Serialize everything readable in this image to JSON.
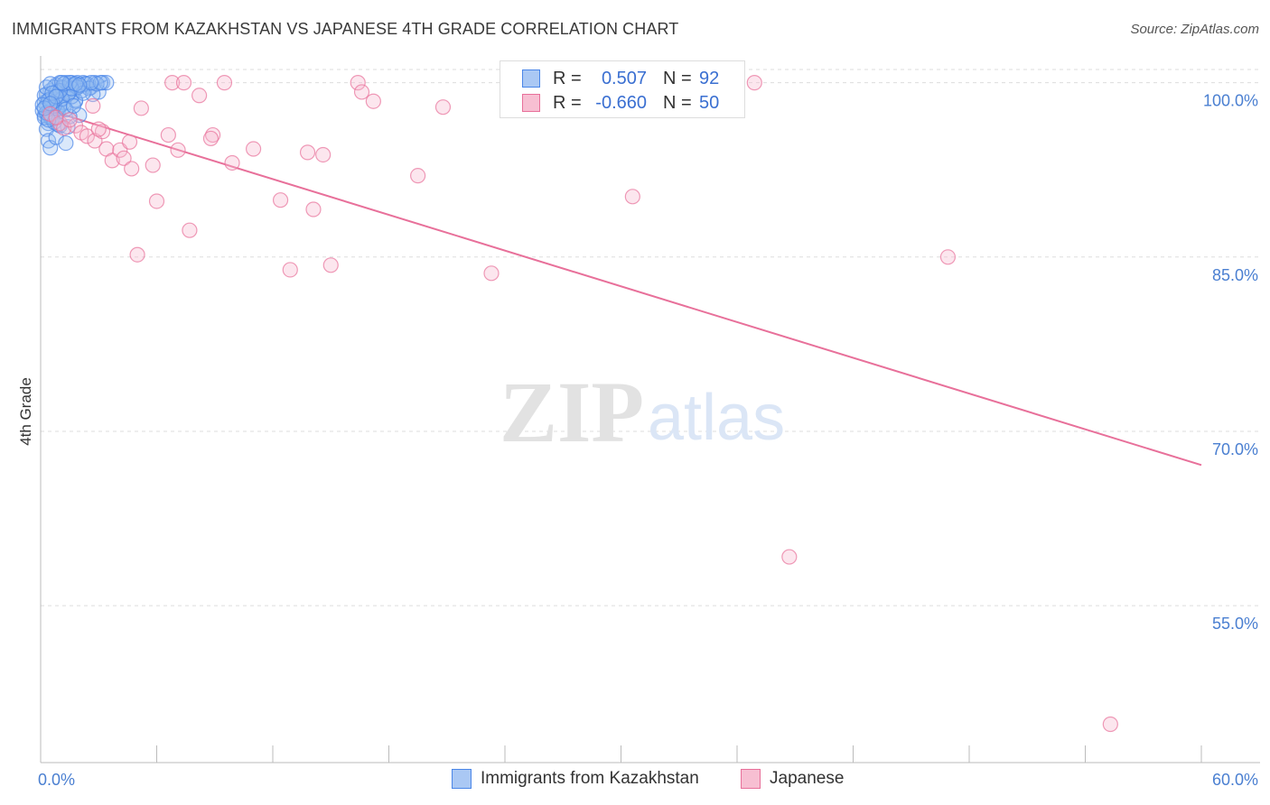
{
  "title": "IMMIGRANTS FROM KAZAKHSTAN VS JAPANESE 4TH GRADE CORRELATION CHART",
  "source": "Source: ZipAtlas.com",
  "watermark": {
    "zip": "ZIP",
    "atlas": "atlas"
  },
  "legend": {
    "rows": [
      {
        "r_label": "R =",
        "r_value": "0.507",
        "n_label": "N =",
        "n_value": "92",
        "color": "#4a86e8",
        "fill": "#aac8f4"
      },
      {
        "r_label": "R =",
        "r_value": "-0.660",
        "n_label": "N =",
        "n_value": "50",
        "color": "#e8709a",
        "fill": "#f7bfd2"
      }
    ]
  },
  "bottom_legend": [
    {
      "label": "Immigrants from Kazakhstan",
      "color": "#4a86e8",
      "fill": "#aac8f4"
    },
    {
      "label": "Japanese",
      "color": "#e8709a",
      "fill": "#f7bfd2"
    }
  ],
  "chart_data": {
    "type": "scatter",
    "title": "IMMIGRANTS FROM KAZAKHSTAN VS JAPANESE 4TH GRADE CORRELATION CHART",
    "xlabel": "",
    "ylabel": "4th Grade",
    "xlim": [
      0,
      60
    ],
    "ylim": [
      41.5,
      102.3
    ],
    "x_tick_labels": [
      "0.0%",
      "60.0%"
    ],
    "y_ticks": [
      100,
      85,
      70,
      55
    ],
    "y_tick_labels": [
      "100.0%",
      "85.0%",
      "70.0%",
      "55.0%"
    ],
    "grid": true,
    "series": [
      {
        "name": "Immigrants from Kazakhstan",
        "color": "#4a86e8",
        "r": 0.507,
        "n": 92,
        "points": [
          [
            0.2,
            97.2
          ],
          [
            0.3,
            98.1
          ],
          [
            0.4,
            96.5
          ],
          [
            0.5,
            99.3
          ],
          [
            0.6,
            97.8
          ],
          [
            0.7,
            98.6
          ],
          [
            0.8,
            99.8
          ],
          [
            0.9,
            98.2
          ],
          [
            1.0,
            100.0
          ],
          [
            1.1,
            99.5
          ],
          [
            1.2,
            98.9
          ],
          [
            1.3,
            100.0
          ],
          [
            1.4,
            99.4
          ],
          [
            1.5,
            99.8
          ],
          [
            1.6,
            100.0
          ],
          [
            1.7,
            99.2
          ],
          [
            1.8,
            98.4
          ],
          [
            1.9,
            100.0
          ],
          [
            2.0,
            99.7
          ],
          [
            2.2,
            100.0
          ],
          [
            2.4,
            99.9
          ],
          [
            2.6,
            99.6
          ],
          [
            2.8,
            100.0
          ],
          [
            3.0,
            99.2
          ],
          [
            3.2,
            100.0
          ],
          [
            3.4,
            100.0
          ],
          [
            0.3,
            96.0
          ],
          [
            0.4,
            95.0
          ],
          [
            0.5,
            94.4
          ],
          [
            0.8,
            95.3
          ],
          [
            1.3,
            94.8
          ],
          [
            1.0,
            96.3
          ],
          [
            1.4,
            96.2
          ],
          [
            0.6,
            97.0
          ],
          [
            2.0,
            97.2
          ],
          [
            1.8,
            98.5
          ],
          [
            0.2,
            98.3
          ],
          [
            0.3,
            99.0
          ],
          [
            0.5,
            98.6
          ],
          [
            0.7,
            99.6
          ],
          [
            0.9,
            99.0
          ],
          [
            1.1,
            99.6
          ],
          [
            1.2,
            98.3
          ],
          [
            1.5,
            99.2
          ],
          [
            1.6,
            98.8
          ],
          [
            1.7,
            99.8
          ],
          [
            2.1,
            99.3
          ],
          [
            2.3,
            99.9
          ],
          [
            2.5,
            99.5
          ],
          [
            2.7,
            99.0
          ],
          [
            0.1,
            97.6
          ],
          [
            0.4,
            97.3
          ],
          [
            0.6,
            96.9
          ],
          [
            0.8,
            97.7
          ],
          [
            1.0,
            98.1
          ],
          [
            0.2,
            98.9
          ],
          [
            0.5,
            97.0
          ],
          [
            0.9,
            97.5
          ],
          [
            1.2,
            97.9
          ],
          [
            1.5,
            97.1
          ],
          [
            1.9,
            99.6
          ],
          [
            2.9,
            99.9
          ],
          [
            3.1,
            100.0
          ],
          [
            0.3,
            99.6
          ],
          [
            0.7,
            98.0
          ],
          [
            1.1,
            98.6
          ],
          [
            1.4,
            99.0
          ],
          [
            0.6,
            98.3
          ],
          [
            0.4,
            98.5
          ],
          [
            0.2,
            97.0
          ],
          [
            0.8,
            99.2
          ],
          [
            1.6,
            99.5
          ],
          [
            2.2,
            99.1
          ],
          [
            0.5,
            99.9
          ],
          [
            1.0,
            99.3
          ],
          [
            1.3,
            97.7
          ],
          [
            0.3,
            97.4
          ],
          [
            0.7,
            96.6
          ],
          [
            0.9,
            96.4
          ],
          [
            0.1,
            98.1
          ],
          [
            1.7,
            98.0
          ],
          [
            1.2,
            99.9
          ],
          [
            0.6,
            99.1
          ],
          [
            0.4,
            96.8
          ],
          [
            0.8,
            98.8
          ],
          [
            2.6,
            100.0
          ],
          [
            1.5,
            100.0
          ],
          [
            1.8,
            99.9
          ],
          [
            0.2,
            97.8
          ],
          [
            0.5,
            98.2
          ],
          [
            1.1,
            100.0
          ],
          [
            2.0,
            99.8
          ]
        ]
      },
      {
        "name": "Japanese",
        "color": "#e8709a",
        "r": -0.66,
        "n": 50,
        "points": [
          [
            0.5,
            97.3
          ],
          [
            1.0,
            96.5
          ],
          [
            1.2,
            96.1
          ],
          [
            1.8,
            96.3
          ],
          [
            2.1,
            95.7
          ],
          [
            2.4,
            95.4
          ],
          [
            2.7,
            98.0
          ],
          [
            2.8,
            95.0
          ],
          [
            3.2,
            95.8
          ],
          [
            3.4,
            94.3
          ],
          [
            3.7,
            93.3
          ],
          [
            4.1,
            94.2
          ],
          [
            4.3,
            93.5
          ],
          [
            4.6,
            94.9
          ],
          [
            4.7,
            92.6
          ],
          [
            5.0,
            85.2
          ],
          [
            5.2,
            97.8
          ],
          [
            5.8,
            92.9
          ],
          [
            6.0,
            89.8
          ],
          [
            6.6,
            95.5
          ],
          [
            7.1,
            94.2
          ],
          [
            7.7,
            87.3
          ],
          [
            6.8,
            100.0
          ],
          [
            7.4,
            100.0
          ],
          [
            8.2,
            98.9
          ],
          [
            8.9,
            95.5
          ],
          [
            9.5,
            100.0
          ],
          [
            9.9,
            93.1
          ],
          [
            11.0,
            94.3
          ],
          [
            12.4,
            89.9
          ],
          [
            12.9,
            83.9
          ],
          [
            13.8,
            94.0
          ],
          [
            14.1,
            89.1
          ],
          [
            14.6,
            93.8
          ],
          [
            15.0,
            84.3
          ],
          [
            16.4,
            100.0
          ],
          [
            16.6,
            99.2
          ],
          [
            17.2,
            98.4
          ],
          [
            19.5,
            92.0
          ],
          [
            20.8,
            97.9
          ],
          [
            23.3,
            83.6
          ],
          [
            30.6,
            90.2
          ],
          [
            36.9,
            100.0
          ],
          [
            46.9,
            85.0
          ],
          [
            38.7,
            59.2
          ],
          [
            55.3,
            44.8
          ],
          [
            3.0,
            96.0
          ],
          [
            8.8,
            95.2
          ],
          [
            0.8,
            97.0
          ],
          [
            1.5,
            96.8
          ]
        ]
      }
    ],
    "trendlines": [
      {
        "series": "Immigrants from Kazakhstan",
        "x": [
          0.3,
          3.4
        ],
        "y": [
          97.6,
          100.2
        ]
      },
      {
        "series": "Japanese",
        "x": [
          0.5,
          60.0
        ],
        "y": [
          97.6,
          67.1
        ]
      }
    ]
  }
}
